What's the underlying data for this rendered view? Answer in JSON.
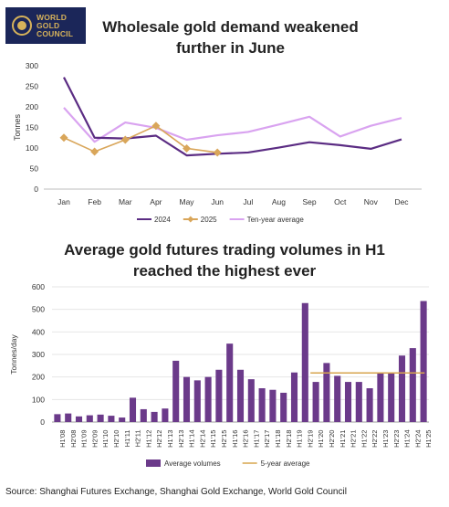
{
  "logo": {
    "lines": [
      "WORLD",
      "GOLD",
      "COUNCIL"
    ]
  },
  "source": "Source: Shanghai Futures Exchange, Shanghai Gold Exchange, World Gold Council",
  "colors": {
    "purple_dark": "#5b2c83",
    "gold": "#d9a65a",
    "lilac": "#d9a3f0",
    "bar": "#6b3a8a",
    "avg_line": "#d7a54e"
  },
  "chart_data": [
    {
      "type": "line",
      "title": "Wholesale gold demand weakened further in June",
      "ylabel": "Tonnes",
      "xlabel": "",
      "ylim": [
        0,
        300
      ],
      "yticks": [
        0,
        50,
        100,
        150,
        200,
        250,
        300
      ],
      "categories": [
        "Jan",
        "Feb",
        "Mar",
        "Apr",
        "May",
        "Jun",
        "Jul",
        "Aug",
        "Sep",
        "Oct",
        "Nov",
        "Dec"
      ],
      "series": [
        {
          "name": "2024",
          "color": "#5b2c83",
          "values": [
            272,
            125,
            123,
            130,
            82,
            86,
            89,
            101,
            114,
            107,
            98,
            121
          ]
        },
        {
          "name": "2025",
          "color": "#d9a65a",
          "marker": "diamond",
          "values": [
            125,
            91,
            120,
            154,
            99,
            89,
            null,
            null,
            null,
            null,
            null,
            null
          ]
        },
        {
          "name": "Ten-year average",
          "color": "#d9a3f0",
          "values": [
            198,
            115,
            162,
            149,
            120,
            131,
            139,
            157,
            176,
            128,
            154,
            173
          ]
        }
      ],
      "legend": "bottom",
      "grid": false
    },
    {
      "type": "bar",
      "title": "Average gold futures trading volumes in H1 reached the highest ever",
      "ylabel": "Tonnes/day",
      "xlabel": "",
      "ylim": [
        0,
        600
      ],
      "yticks": [
        0,
        100,
        200,
        300,
        400,
        500,
        600
      ],
      "categories": [
        "H1'08",
        "H2'08",
        "H1'09",
        "H2'09",
        "H1'10",
        "H2'10",
        "H1'11",
        "H2'11",
        "H1'12",
        "H2'12",
        "H1'13",
        "H2'13",
        "H1'14",
        "H2'14",
        "H1'15",
        "H2'15",
        "H1'16",
        "H2'16",
        "H1'17",
        "H2'17",
        "H1'18",
        "H2'18",
        "H1'19",
        "H2'19",
        "H1'20",
        "H2'20",
        "H1'21",
        "H2'21",
        "H1'22",
        "H2'22",
        "H1'23",
        "H2'23",
        "H1'24",
        "H2'24",
        "H1'25"
      ],
      "series": [
        {
          "name": "Average volumes",
          "color": "#6b3a8a",
          "values": [
            35,
            38,
            25,
            30,
            33,
            28,
            20,
            108,
            57,
            45,
            60,
            272,
            200,
            185,
            200,
            232,
            348,
            232,
            190,
            150,
            143,
            130,
            220,
            528,
            178,
            262,
            205,
            178,
            178,
            150,
            220,
            220,
            295,
            328,
            537
          ]
        },
        {
          "name": "5-year average",
          "color": "#d7a54e",
          "type": "line",
          "start_category": "H1'20",
          "end_category": "H1'25",
          "value": 218
        }
      ],
      "legend": "bottom",
      "grid": true
    }
  ]
}
